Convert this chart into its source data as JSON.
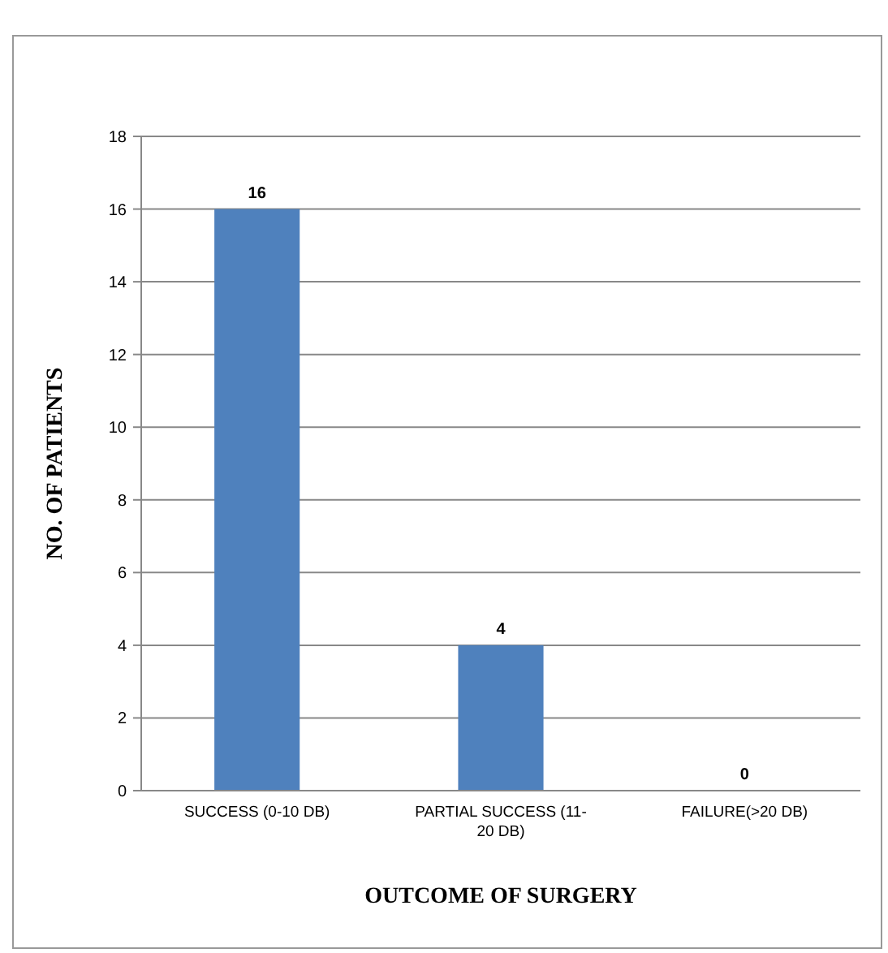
{
  "chart_data": {
    "type": "bar",
    "categories": [
      "SUCCESS (0-10 DB)",
      "PARTIAL SUCCESS (11-20 DB)",
      "FAILURE(>20 DB)"
    ],
    "values": [
      16,
      4,
      0
    ],
    "color": "#4f81bd",
    "xlabel": "OUTCOME OF SURGERY",
    "ylabel": "NO. OF PATIENTS",
    "ylim": [
      0,
      18
    ],
    "yticks": [
      0,
      2,
      4,
      6,
      8,
      10,
      12,
      14,
      16,
      18
    ],
    "grid": "y",
    "data_labels": true
  }
}
